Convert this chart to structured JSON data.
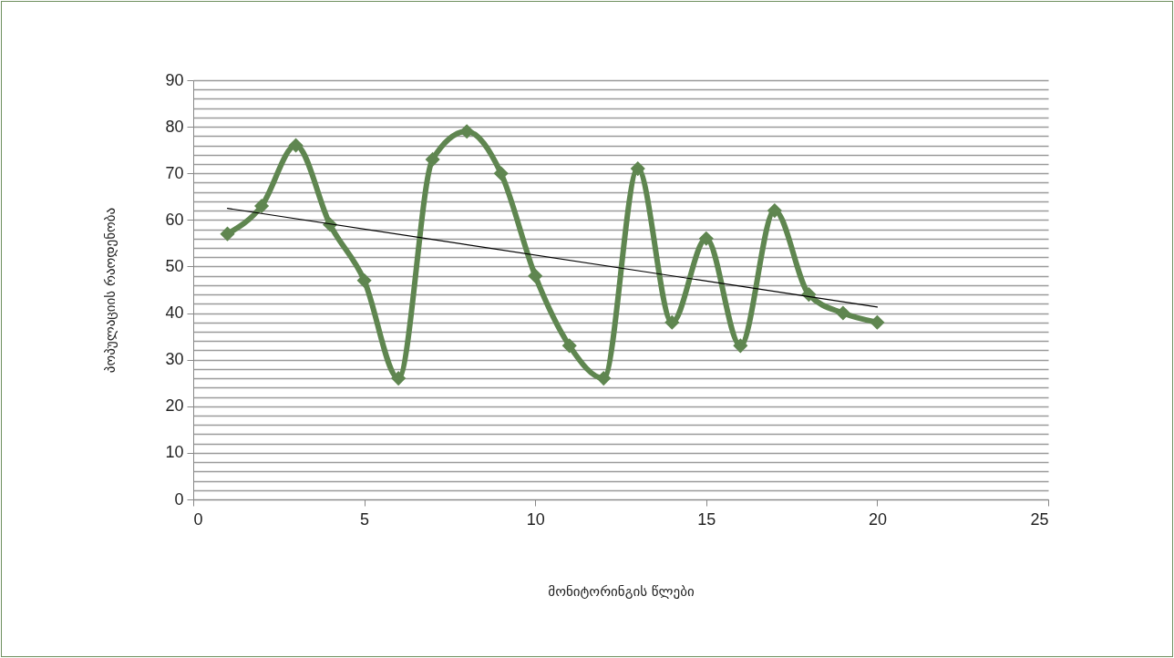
{
  "chart_data": {
    "type": "line",
    "xlabel": "მონიტორინგის წლები",
    "ylabel": "პოპულაციის რაოდენობა",
    "x": [
      1,
      2,
      3,
      4,
      5,
      6,
      7,
      8,
      9,
      10,
      11,
      12,
      13,
      14,
      15,
      16,
      17,
      18,
      19,
      20
    ],
    "series": [
      {
        "color": "#5f8650",
        "marker": "diamond",
        "values": [
          57,
          63,
          76,
          59,
          47,
          26,
          73,
          79,
          70,
          48,
          33,
          26,
          71,
          38,
          56,
          33,
          62,
          44,
          40,
          38
        ]
      },
      {
        "type": "line",
        "color": "#000000",
        "marker": "none",
        "x": [
          1,
          20
        ],
        "values": [
          62.5,
          41.3
        ]
      }
    ],
    "xlim": [
      0,
      25
    ],
    "xticks": [
      0,
      5,
      10,
      15,
      20,
      25
    ],
    "ylim": [
      0,
      90
    ],
    "yticks": [
      0,
      {
        "value": 2,
        "label": null
      },
      {
        "value": 4,
        "label": null
      },
      {
        "value": 6,
        "label": null
      },
      {
        "value": 8,
        "label": null
      },
      10,
      {
        "value": 12,
        "label": null
      },
      {
        "value": 14,
        "label": null
      },
      {
        "value": 16,
        "label": null
      },
      {
        "value": 18,
        "label": null
      },
      20,
      {
        "value": 22,
        "label": null
      },
      {
        "value": 24,
        "label": null
      },
      {
        "value": 26,
        "label": null
      },
      {
        "value": 28,
        "label": null
      },
      30,
      {
        "value": 32,
        "label": null
      },
      {
        "value": 34,
        "label": null
      },
      {
        "value": 36,
        "label": null
      },
      {
        "value": 38,
        "label": null
      },
      40,
      {
        "value": 42,
        "label": null
      },
      {
        "value": 44,
        "label": null
      },
      {
        "value": 46,
        "label": null
      },
      {
        "value": 48,
        "label": null
      },
      50,
      {
        "value": 52,
        "label": null
      },
      {
        "value": 54,
        "label": null
      },
      {
        "value": 56,
        "label": null
      },
      {
        "value": 58,
        "label": null
      },
      60,
      {
        "value": 62,
        "label": null
      },
      {
        "value": 64,
        "label": null
      },
      {
        "value": 66,
        "label": null
      },
      {
        "value": 68,
        "label": null
      },
      70,
      {
        "value": 72,
        "label": null
      },
      {
        "value": 74,
        "label": null
      },
      {
        "value": 76,
        "label": null
      },
      {
        "value": 78,
        "label": null
      },
      80,
      {
        "value": 82,
        "label": null
      },
      {
        "value": 84,
        "label": null
      },
      {
        "value": 86,
        "label": null
      },
      {
        "value": 88,
        "label": null
      },
      90
    ],
    "grid": "y"
  }
}
